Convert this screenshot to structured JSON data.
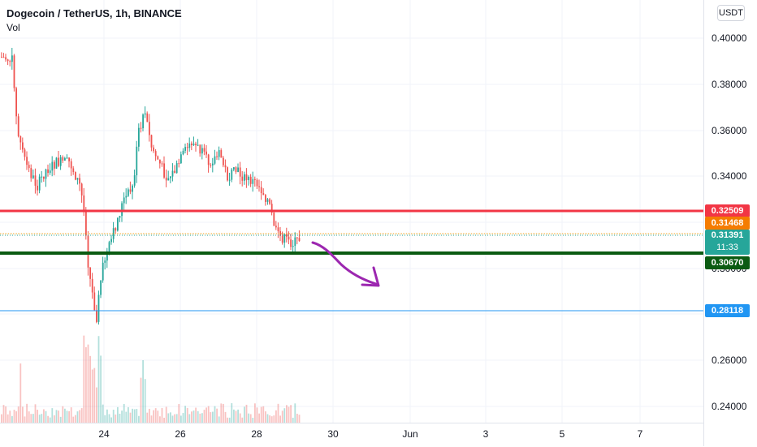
{
  "header": {
    "title": "Dogecoin / TetherUS, 1h, BINANCE",
    "indicator": "Vol"
  },
  "price_axis": {
    "currency": "USDT",
    "ticks": [
      "0.40000",
      "0.38000",
      "0.36000",
      "0.34000",
      "0.30000",
      "0.26000",
      "0.24000"
    ]
  },
  "time_axis": {
    "labels": [
      "24",
      "26",
      "28",
      "30",
      "Jun",
      "3",
      "5",
      "7"
    ]
  },
  "levels": {
    "red": {
      "label": "0.32509",
      "color": "#f23645"
    },
    "orange": {
      "label": "0.31468",
      "color": "#f57c00"
    },
    "current": {
      "label": "0.31391",
      "countdown": "11:33",
      "color": "#26a69a"
    },
    "green": {
      "label": "0.30670",
      "color": "#0b5b12"
    },
    "blue": {
      "label": "0.28118",
      "color": "#2196f3"
    }
  },
  "colors": {
    "up": "#26a69a",
    "down": "#ef5350",
    "arrow": "#9c27b0",
    "grid": "#f0f3fa"
  }
}
